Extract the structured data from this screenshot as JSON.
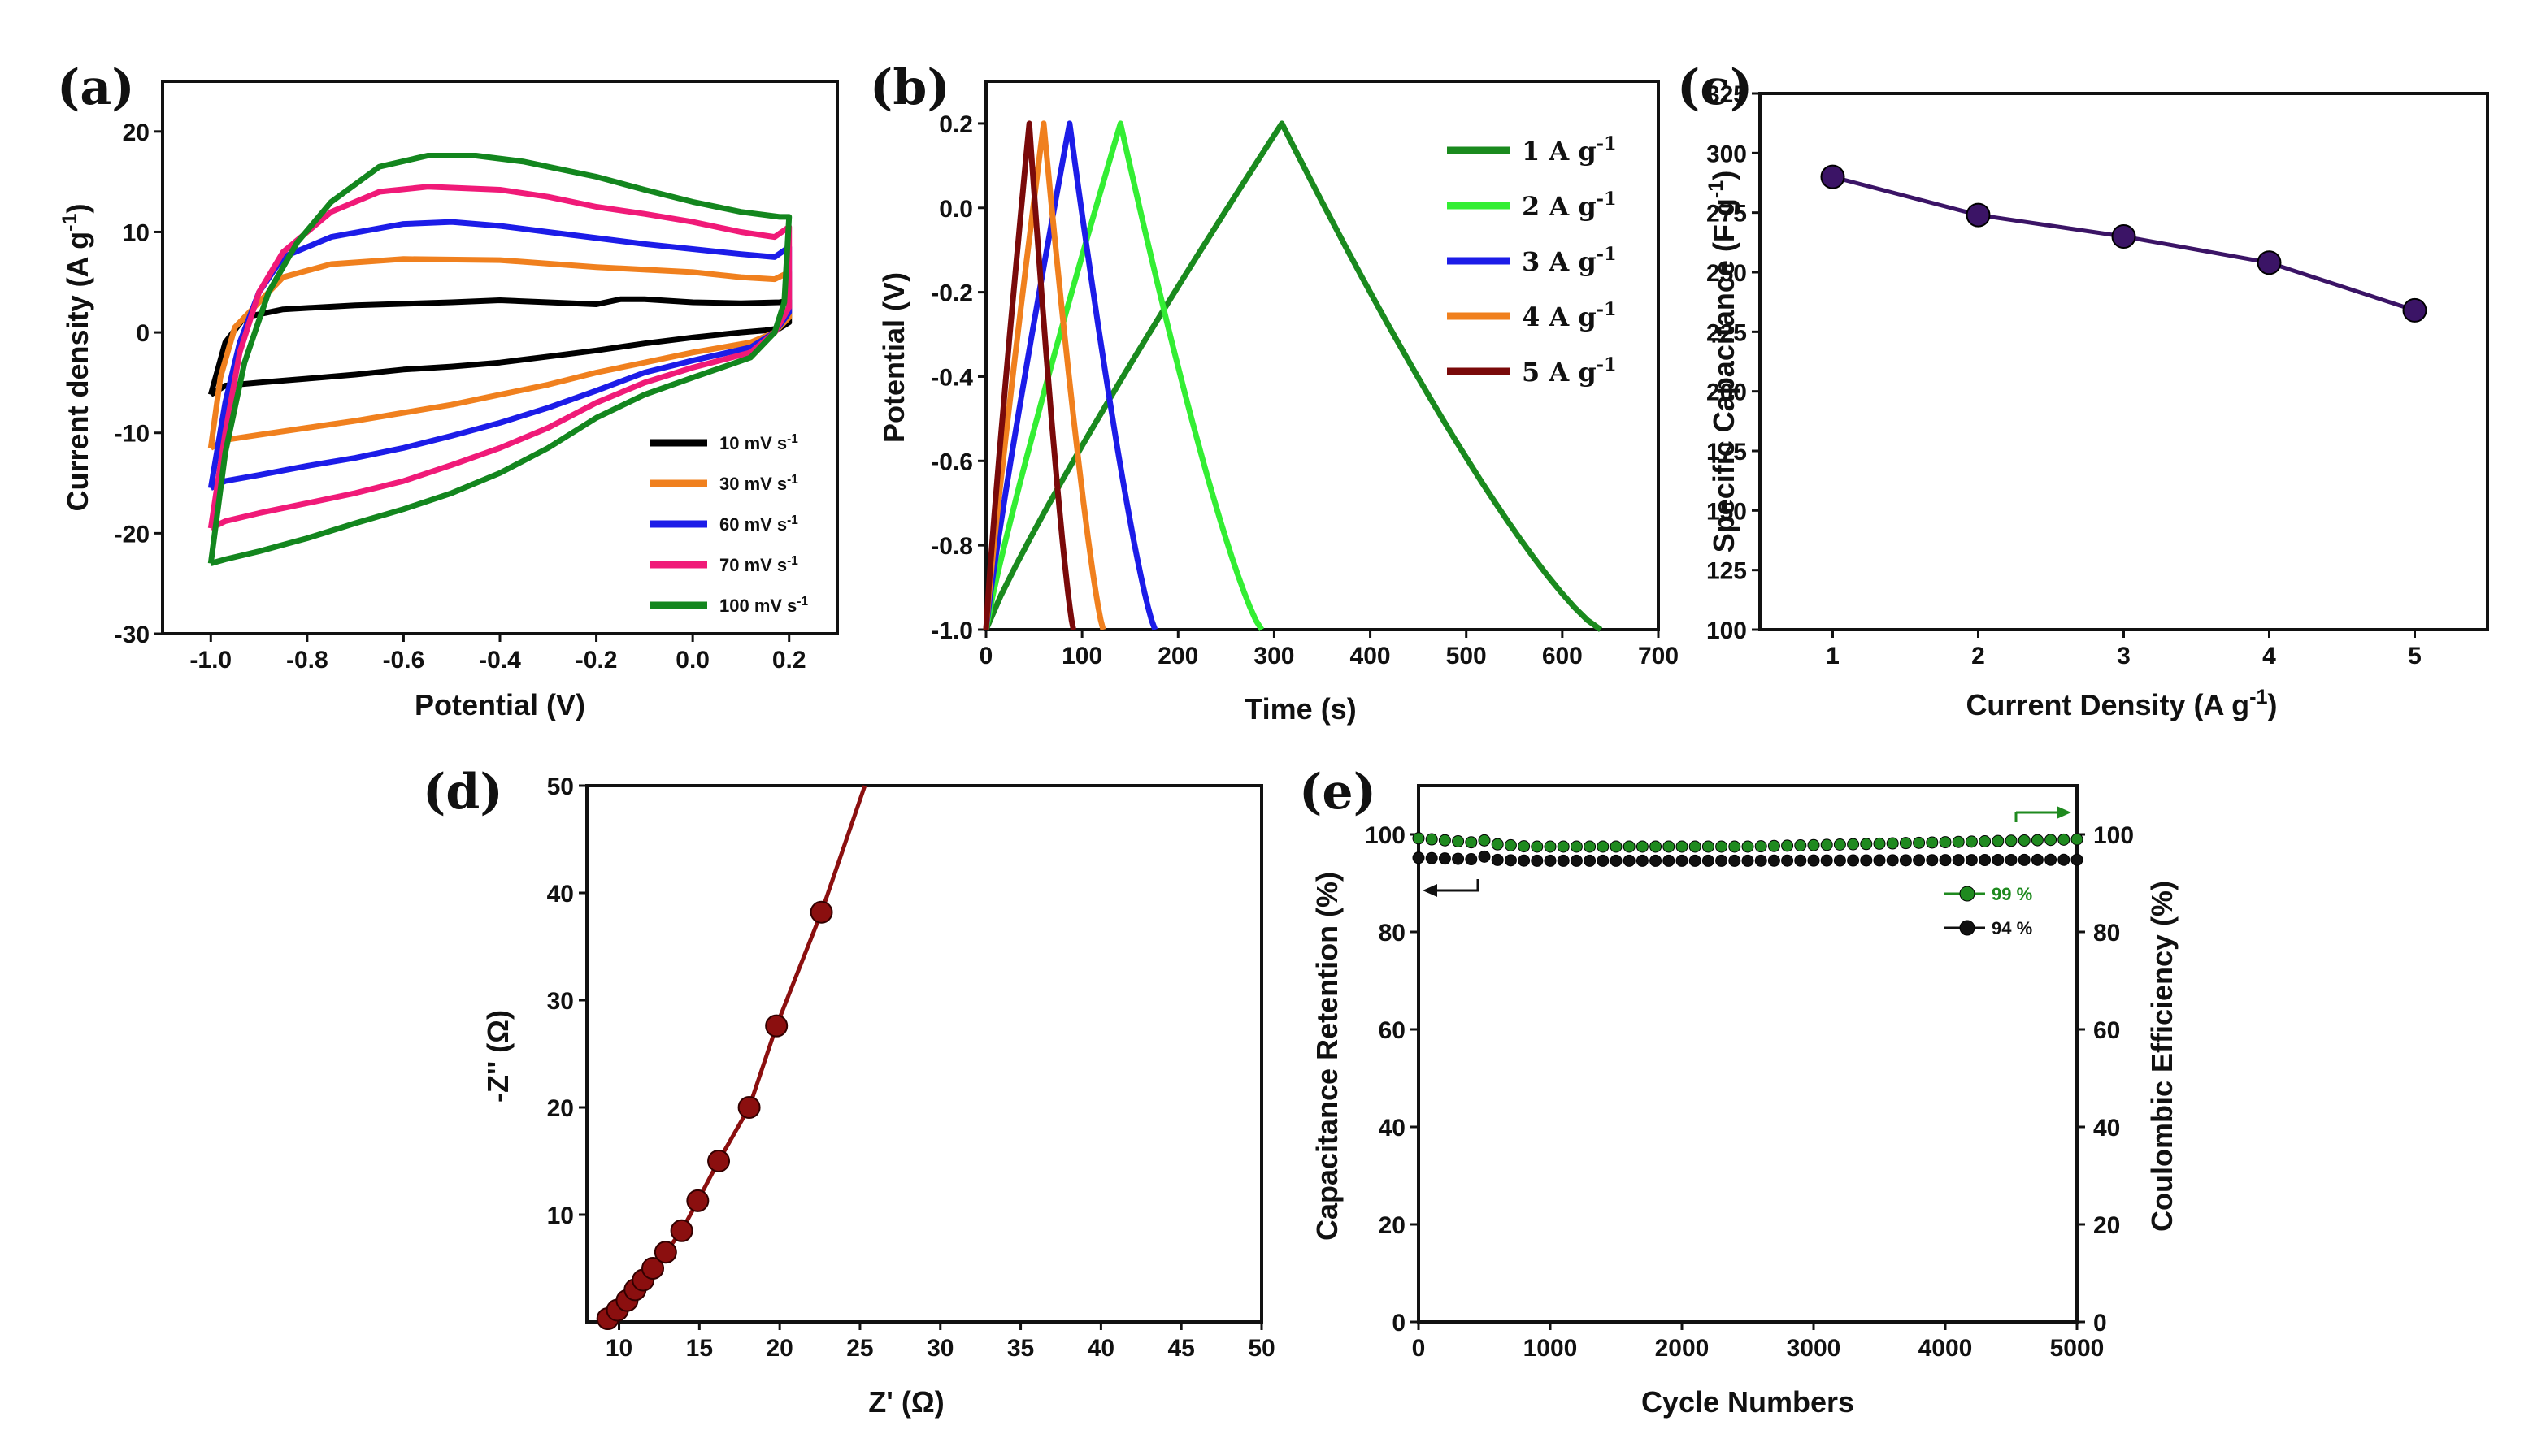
{
  "chart_data": [
    {
      "panel": "(a)",
      "type": "line",
      "xlabel": "Potential (V)",
      "ylabel": "Current density (A g⁻¹)",
      "xlim": [
        -1.1,
        0.3
      ],
      "ylim": [
        -30,
        25
      ],
      "xticks": [
        -1.0,
        -0.8,
        -0.6,
        -0.4,
        -0.2,
        0.0,
        0.2
      ],
      "xtick_labels": [
        "-1.0",
        "-0.8",
        "-0.6",
        "-0.4",
        "-0.2",
        "0.0",
        "0.2"
      ],
      "yticks": [
        -30,
        -20,
        -10,
        0,
        10,
        20
      ],
      "ytick_labels": [
        "-30",
        "-20",
        "-10",
        "0",
        "10",
        "20"
      ],
      "legend_position": "bottom-right",
      "series": [
        {
          "name": "10 mV s-1",
          "color": "#000000",
          "upper": [
            [
              -1.0,
              -6.2
            ],
            [
              -0.97,
              -1.0
            ],
            [
              -0.93,
              1.5
            ],
            [
              -0.85,
              2.3
            ],
            [
              -0.7,
              2.7
            ],
            [
              -0.5,
              3.0
            ],
            [
              -0.4,
              3.2
            ],
            [
              -0.3,
              3.0
            ],
            [
              -0.2,
              2.8
            ],
            [
              -0.15,
              3.3
            ],
            [
              -0.1,
              3.3
            ],
            [
              0.0,
              3.0
            ],
            [
              0.1,
              2.9
            ],
            [
              0.18,
              3.0
            ],
            [
              0.2,
              3.2
            ]
          ],
          "lower": [
            [
              0.2,
              1.0
            ],
            [
              0.18,
              0.4
            ],
            [
              0.15,
              0.2
            ],
            [
              0.1,
              0.0
            ],
            [
              0.0,
              -0.5
            ],
            [
              -0.1,
              -1.1
            ],
            [
              -0.2,
              -1.8
            ],
            [
              -0.3,
              -2.4
            ],
            [
              -0.4,
              -3.0
            ],
            [
              -0.5,
              -3.4
            ],
            [
              -0.6,
              -3.7
            ],
            [
              -0.7,
              -4.2
            ],
            [
              -0.8,
              -4.6
            ],
            [
              -0.9,
              -5.0
            ],
            [
              -0.97,
              -5.3
            ],
            [
              -1.0,
              -6.2
            ]
          ]
        },
        {
          "name": "30 mV s-1",
          "color": "#f0801e",
          "upper": [
            [
              -1.0,
              -11.5
            ],
            [
              -0.98,
              -4.5
            ],
            [
              -0.95,
              0.5
            ],
            [
              -0.9,
              3.0
            ],
            [
              -0.85,
              5.5
            ],
            [
              -0.75,
              6.8
            ],
            [
              -0.6,
              7.3
            ],
            [
              -0.4,
              7.2
            ],
            [
              -0.2,
              6.5
            ],
            [
              0.0,
              6.0
            ],
            [
              0.1,
              5.5
            ],
            [
              0.17,
              5.3
            ],
            [
              0.2,
              6.0
            ]
          ],
          "lower": [
            [
              0.2,
              1.5
            ],
            [
              0.17,
              0.0
            ],
            [
              0.12,
              -1.0
            ],
            [
              0.0,
              -2.0
            ],
            [
              -0.1,
              -3.0
            ],
            [
              -0.2,
              -4.0
            ],
            [
              -0.3,
              -5.2
            ],
            [
              -0.4,
              -6.2
            ],
            [
              -0.5,
              -7.2
            ],
            [
              -0.6,
              -8.0
            ],
            [
              -0.7,
              -8.8
            ],
            [
              -0.8,
              -9.5
            ],
            [
              -0.9,
              -10.2
            ],
            [
              -0.97,
              -10.7
            ],
            [
              -1.0,
              -11.5
            ]
          ]
        },
        {
          "name": "60 mV s-1",
          "color": "#1c1ce8",
          "upper": [
            [
              -1.0,
              -15.5
            ],
            [
              -0.97,
              -7.0
            ],
            [
              -0.94,
              -1.0
            ],
            [
              -0.9,
              4.0
            ],
            [
              -0.85,
              7.5
            ],
            [
              -0.75,
              9.5
            ],
            [
              -0.6,
              10.8
            ],
            [
              -0.5,
              11.0
            ],
            [
              -0.4,
              10.6
            ],
            [
              -0.3,
              10.0
            ],
            [
              -0.2,
              9.4
            ],
            [
              -0.1,
              8.8
            ],
            [
              0.0,
              8.3
            ],
            [
              0.1,
              7.8
            ],
            [
              0.17,
              7.5
            ],
            [
              0.2,
              8.5
            ]
          ],
          "lower": [
            [
              0.2,
              2.0
            ],
            [
              0.17,
              0.0
            ],
            [
              0.12,
              -1.5
            ],
            [
              0.0,
              -2.8
            ],
            [
              -0.1,
              -4.0
            ],
            [
              -0.2,
              -5.8
            ],
            [
              -0.3,
              -7.5
            ],
            [
              -0.4,
              -9.0
            ],
            [
              -0.5,
              -10.3
            ],
            [
              -0.6,
              -11.5
            ],
            [
              -0.7,
              -12.5
            ],
            [
              -0.8,
              -13.3
            ],
            [
              -0.9,
              -14.2
            ],
            [
              -0.97,
              -14.8
            ],
            [
              -1.0,
              -15.5
            ]
          ]
        },
        {
          "name": "70 mV s-1",
          "color": "#f01a78",
          "upper": [
            [
              -1.0,
              -19.5
            ],
            [
              -0.97,
              -10.0
            ],
            [
              -0.94,
              -2.0
            ],
            [
              -0.9,
              4.0
            ],
            [
              -0.85,
              8.0
            ],
            [
              -0.75,
              12.0
            ],
            [
              -0.65,
              14.0
            ],
            [
              -0.55,
              14.5
            ],
            [
              -0.4,
              14.2
            ],
            [
              -0.3,
              13.5
            ],
            [
              -0.2,
              12.5
            ],
            [
              -0.1,
              11.8
            ],
            [
              0.0,
              11.0
            ],
            [
              0.1,
              10.0
            ],
            [
              0.17,
              9.5
            ],
            [
              0.2,
              10.5
            ]
          ],
          "lower": [
            [
              0.2,
              2.5
            ],
            [
              0.17,
              0.0
            ],
            [
              0.12,
              -2.0
            ],
            [
              0.0,
              -3.5
            ],
            [
              -0.1,
              -5.0
            ],
            [
              -0.2,
              -7.0
            ],
            [
              -0.3,
              -9.5
            ],
            [
              -0.4,
              -11.5
            ],
            [
              -0.5,
              -13.2
            ],
            [
              -0.6,
              -14.8
            ],
            [
              -0.7,
              -16.0
            ],
            [
              -0.8,
              -17.0
            ],
            [
              -0.9,
              -18.0
            ],
            [
              -0.97,
              -18.8
            ],
            [
              -1.0,
              -19.5
            ]
          ]
        },
        {
          "name": "100 mV s-1",
          "color": "#13861e",
          "upper": [
            [
              -1.0,
              -23.0
            ],
            [
              -0.97,
              -12.0
            ],
            [
              -0.93,
              -3.0
            ],
            [
              -0.88,
              4.0
            ],
            [
              -0.82,
              9.0
            ],
            [
              -0.75,
              13.0
            ],
            [
              -0.65,
              16.5
            ],
            [
              -0.55,
              17.6
            ],
            [
              -0.45,
              17.6
            ],
            [
              -0.35,
              17.0
            ],
            [
              -0.2,
              15.5
            ],
            [
              -0.1,
              14.2
            ],
            [
              0.0,
              13.0
            ],
            [
              0.1,
              12.0
            ],
            [
              0.18,
              11.5
            ],
            [
              0.2,
              11.5
            ]
          ],
          "lower": [
            [
              0.2,
              11.5
            ],
            [
              0.19,
              3.0
            ],
            [
              0.17,
              0.0
            ],
            [
              0.12,
              -2.5
            ],
            [
              0.0,
              -4.5
            ],
            [
              -0.1,
              -6.2
            ],
            [
              -0.2,
              -8.5
            ],
            [
              -0.3,
              -11.5
            ],
            [
              -0.4,
              -14.0
            ],
            [
              -0.5,
              -16.0
            ],
            [
              -0.6,
              -17.6
            ],
            [
              -0.7,
              -19.0
            ],
            [
              -0.8,
              -20.5
            ],
            [
              -0.9,
              -21.8
            ],
            [
              -0.97,
              -22.6
            ],
            [
              -1.0,
              -23.0
            ]
          ]
        }
      ]
    },
    {
      "panel": "(b)",
      "type": "line",
      "xlabel": "Time (s)",
      "ylabel": "Potential (V)",
      "xlim": [
        0,
        700
      ],
      "ylim": [
        -1.0,
        0.3
      ],
      "xticks": [
        0,
        100,
        200,
        300,
        400,
        500,
        600,
        700
      ],
      "xtick_labels": [
        "0",
        "100",
        "200",
        "300",
        "400",
        "500",
        "600",
        "700"
      ],
      "yticks": [
        -1.0,
        -0.8,
        -0.6,
        -0.4,
        -0.2,
        0.0,
        0.2
      ],
      "ytick_labels": [
        "-1.0",
        "-0.8",
        "-0.6",
        "-0.4",
        "-0.2",
        "0.0",
        "0.2"
      ],
      "legend_position": "top-right",
      "series": [
        {
          "name": "1 A g-1",
          "color": "#1a8a1e",
          "charge_end": 308,
          "discharge_end": 640
        },
        {
          "name": "2 A g-1",
          "color": "#33ee33",
          "charge_end": 140,
          "discharge_end": 287
        },
        {
          "name": "3 A g-1",
          "color": "#1c1ce8",
          "charge_end": 87,
          "discharge_end": 176
        },
        {
          "name": "4 A g-1",
          "color": "#f0801e",
          "charge_end": 60,
          "discharge_end": 122
        },
        {
          "name": "5 A g-1",
          "color": "#7a0a0a",
          "charge_end": 45,
          "discharge_end": 91
        }
      ]
    },
    {
      "panel": "(c)",
      "type": "line",
      "xlabel": "Current Density (A g-1)",
      "ylabel": "Specific Capacitance (F g-1)",
      "xlim": [
        0.5,
        5.5
      ],
      "ylim": [
        100,
        325
      ],
      "xticks": [
        1,
        2,
        3,
        4,
        5
      ],
      "xtick_labels": [
        "1",
        "2",
        "3",
        "4",
        "5"
      ],
      "yticks": [
        100,
        125,
        150,
        175,
        200,
        225,
        250,
        275,
        300,
        325
      ],
      "ytick_labels": [
        "100",
        "125",
        "150",
        "175",
        "200",
        "225",
        "250",
        "275",
        "300",
        "325"
      ],
      "x": [
        1,
        2,
        3,
        4,
        5
      ],
      "values": [
        290,
        274,
        265,
        254,
        234
      ],
      "color": "#3b1466"
    },
    {
      "panel": "(d)",
      "type": "line",
      "xlabel": "Z' (Ω)",
      "ylabel": "-Z'' (Ω)",
      "xlim": [
        8,
        50
      ],
      "ylim": [
        0,
        50
      ],
      "xticks": [
        10,
        15,
        20,
        25,
        30,
        35,
        40,
        45,
        50
      ],
      "xtick_labels": [
        "10",
        "15",
        "20",
        "25",
        "30",
        "35",
        "40",
        "45",
        "50"
      ],
      "yticks": [
        10,
        20,
        30,
        40,
        50
      ],
      "ytick_labels": [
        "10",
        "20",
        "30",
        "40",
        "50"
      ],
      "x": [
        9.3,
        9.9,
        10.5,
        11.0,
        11.5,
        12.1,
        12.9,
        13.9,
        14.9,
        16.2,
        18.1,
        19.8,
        22.6
      ],
      "values": [
        0.3,
        1.1,
        2.0,
        3.0,
        3.9,
        5.0,
        6.5,
        8.5,
        11.3,
        15.0,
        20.0,
        27.6,
        38.2
      ],
      "line_end": [
        25.3,
        50
      ],
      "color": "#8b0f0f"
    },
    {
      "panel": "(e)",
      "type": "scatter",
      "xlabel": "Cycle Numbers",
      "ylabel": "Capacitance Retention (%)",
      "ylabel_right": "Coulombic Efficiency (%)",
      "xlim": [
        0,
        5000
      ],
      "ylim": [
        0,
        110
      ],
      "xticks": [
        0,
        1000,
        2000,
        3000,
        4000,
        5000
      ],
      "xtick_labels": [
        "0",
        "1000",
        "2000",
        "3000",
        "4000",
        "5000"
      ],
      "yticks": [
        0,
        20,
        40,
        60,
        80,
        100
      ],
      "ytick_labels": [
        "0",
        "20",
        "40",
        "60",
        "80",
        "100"
      ],
      "series": [
        {
          "name": "99 %",
          "color": "#1f8a1f",
          "axis": "right",
          "start": 99.2,
          "min": 97.5,
          "end": 99.0
        },
        {
          "name": "94 %",
          "color": "#111111",
          "axis": "left",
          "start": 95.2,
          "min": 94.6,
          "end": 94.8
        }
      ]
    }
  ]
}
